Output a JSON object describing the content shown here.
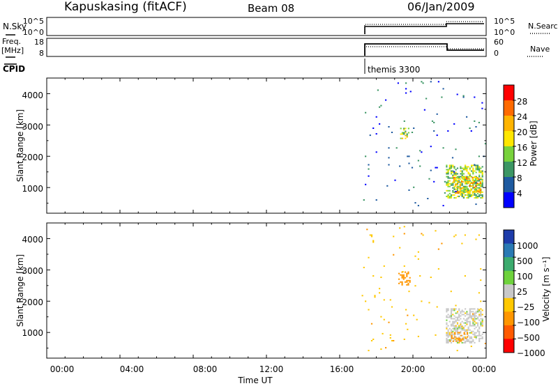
{
  "header": {
    "station": "Kapuskasing (fitACF)",
    "beam": "Beam 08",
    "date": "06/Jan/2009"
  },
  "top_panels": {
    "nsky": {
      "label": "N.Sky",
      "ticks": [
        "10^5",
        "10^0"
      ],
      "right_label": "N.Search",
      "right_ticks": [
        "10^5",
        "10^0"
      ]
    },
    "freq": {
      "label1": "Freq.",
      "label2": "[MHz]",
      "ticks": [
        "18",
        "8"
      ],
      "right_label": "Nave",
      "right_ticks": [
        "60",
        "0"
      ]
    },
    "cpid": {
      "label": "CPID",
      "mode": "themis 3300"
    }
  },
  "x_axis": {
    "label": "Time UT",
    "ticks": [
      "00:00",
      "04:00",
      "08:00",
      "12:00",
      "16:00",
      "20:00",
      "00:00"
    ]
  },
  "power_panel": {
    "ylabel": "Slant Range [km]",
    "yticks": [
      "4000",
      "3000",
      "2000",
      "1000"
    ],
    "cbar_label": "Power [dB]",
    "cbar_ticks": [
      "28",
      "24",
      "20",
      "16",
      "12",
      "8",
      "4"
    ],
    "cbar_colors": [
      "#ff0000",
      "#ff6a00",
      "#ffb400",
      "#ffe600",
      "#78d23c",
      "#3c9664",
      "#1e5aa0",
      "#0000ff"
    ]
  },
  "velocity_panel": {
    "ylabel": "Slant Range [km]",
    "yticks": [
      "4000",
      "3000",
      "2000",
      "1000"
    ],
    "cbar_label": "Velocity [m s⁻¹]",
    "cbar_ticks": [
      "1000",
      "500",
      "100",
      "25",
      "−25",
      "−100",
      "−500",
      "−1000"
    ],
    "cbar_colors": [
      "#1e3caa",
      "#2a7ab4",
      "#3cab6e",
      "#6ed23c",
      "#c8c8c8",
      "#ffc800",
      "#ff9600",
      "#ff5a00",
      "#ff0000"
    ]
  },
  "chart_data": {
    "type": "heatmap",
    "xlim_hours": [
      0,
      24
    ],
    "ylim_km": [
      180,
      4500
    ],
    "mode_change_hours": [
      17.2,
      21.9
    ],
    "power_clusters": [
      {
        "t_start": 21.8,
        "t_end": 23.8,
        "r_min": 650,
        "r_max": 1700,
        "value_db": 14,
        "density": 0.55
      },
      {
        "t_start": 22.2,
        "t_end": 23.7,
        "r_min": 800,
        "r_max": 1300,
        "value_db": 20,
        "density": 0.45
      },
      {
        "t_start": 19.3,
        "t_end": 19.8,
        "r_min": 2550,
        "r_max": 2900,
        "value_db": 16,
        "density": 0.35
      },
      {
        "t_start": 17.2,
        "t_end": 24.0,
        "r_min": 400,
        "r_max": 4400,
        "value_db": 6,
        "density": 0.012
      }
    ],
    "velocity_clusters": [
      {
        "t_start": 21.8,
        "t_end": 23.8,
        "r_min": 650,
        "r_max": 1750,
        "value_ms": 0,
        "density": 0.55
      },
      {
        "t_start": 22.0,
        "t_end": 23.0,
        "r_min": 700,
        "r_max": 1000,
        "value_ms": -150,
        "density": 0.35
      },
      {
        "t_start": 19.2,
        "t_end": 19.8,
        "r_min": 2500,
        "r_max": 2950,
        "value_ms": -300,
        "density": 0.35
      },
      {
        "t_start": 17.2,
        "t_end": 24.0,
        "r_min": 400,
        "r_max": 4400,
        "value_ms": -80,
        "density": 0.012
      }
    ]
  }
}
